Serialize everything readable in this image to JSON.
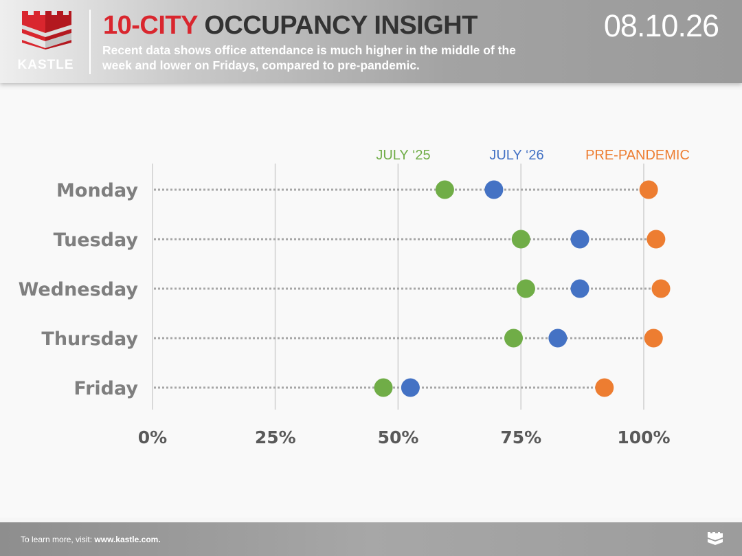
{
  "header": {
    "brand": "KASTLE",
    "title_accent": "10-CITY",
    "title_main": "OCCUPANCY INSIGHT",
    "subtitle": "Recent data shows office attendance is much higher in the middle of the week and lower on Fridays, compared to pre-pandemic.",
    "date": "08.10.26"
  },
  "footer": {
    "lead": "To learn more, visit:",
    "url": "www.kastle.com."
  },
  "colors": {
    "brand_red": "#d9262e",
    "july25": "#70ad47",
    "july26": "#4472c4",
    "prepandemic": "#ed7d31",
    "category_text": "#7f7f7f",
    "grid": "#d9d9d9"
  },
  "chart_data": {
    "type": "scatter",
    "categories": [
      "Monday",
      "Tuesday",
      "Wednesday",
      "Thursday",
      "Friday"
    ],
    "x_ticks": [
      {
        "value": 0,
        "label": "0%"
      },
      {
        "value": 25,
        "label": "25%"
      },
      {
        "value": 50,
        "label": "50%"
      },
      {
        "value": 75,
        "label": "75%"
      },
      {
        "value": 100,
        "label": "100%"
      }
    ],
    "xlim": [
      0,
      100
    ],
    "grid": true,
    "legend_placement": "top",
    "series": [
      {
        "name": "JULY ‘25",
        "color": "#70ad47",
        "values": [
          59.5,
          75,
          76,
          73.5,
          47
        ]
      },
      {
        "name": "JULY ‘26",
        "color": "#4472c4",
        "values": [
          69.5,
          87,
          87,
          82.5,
          52.5
        ]
      },
      {
        "name": "PRE-PANDEMIC",
        "color": "#ed7d31",
        "values": [
          101,
          102.5,
          103.5,
          102,
          92
        ]
      }
    ]
  }
}
